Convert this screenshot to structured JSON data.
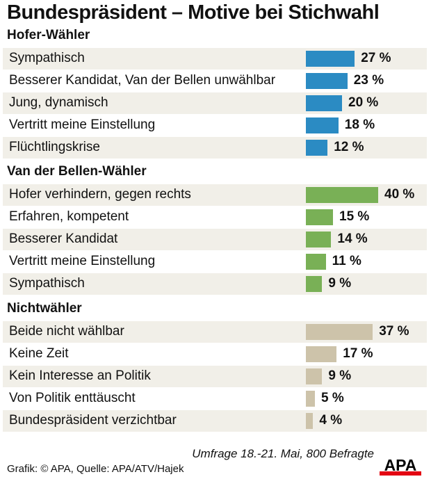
{
  "chart_data": {
    "type": "bar",
    "orientation": "horizontal",
    "title": "Bundespräsident – Motive bei Stichwahl",
    "unit": "%",
    "groups": [
      {
        "name": "Hofer-Wähler",
        "color": "#2b8bc3",
        "categories": [
          "Sympathisch",
          "Besserer Kandidat, Van der Bellen unwählbar",
          "Jung, dynamisch",
          "Vertritt meine Einstellung",
          "Flüchtlingskrise"
        ],
        "values": [
          27,
          23,
          20,
          18,
          12
        ],
        "labels": [
          "27 %",
          "23 %",
          "20 %",
          "18 %",
          "12 %"
        ]
      },
      {
        "name": "Van der Bellen-Wähler",
        "color": "#79b056",
        "categories": [
          "Hofer verhindern, gegen rechts",
          "Erfahren, kompetent",
          "Besserer Kandidat",
          "Vertritt meine Einstellung",
          "Sympathisch"
        ],
        "values": [
          40,
          15,
          14,
          11,
          9
        ],
        "labels": [
          "40 %",
          "15 %",
          "14 %",
          "11 %",
          "9 %"
        ]
      },
      {
        "name": "Nichtwähler",
        "color": "#cdc3aa",
        "categories": [
          "Beide nicht wählbar",
          "Keine Zeit",
          "Kein Interesse an Politik",
          "Von Politik enttäuscht",
          "Bundespräsident verzichtbar"
        ],
        "values": [
          37,
          17,
          9,
          5,
          4
        ],
        "labels": [
          "37 %",
          "17 %",
          "9 %",
          "5 %",
          "4 %"
        ]
      }
    ]
  },
  "footer": {
    "note": "Umfrage 18.-21. Mai, 800 Befragte",
    "credit": "Grafik: © APA, Quelle: APA/ATV/Hajek",
    "logo": "APA"
  }
}
